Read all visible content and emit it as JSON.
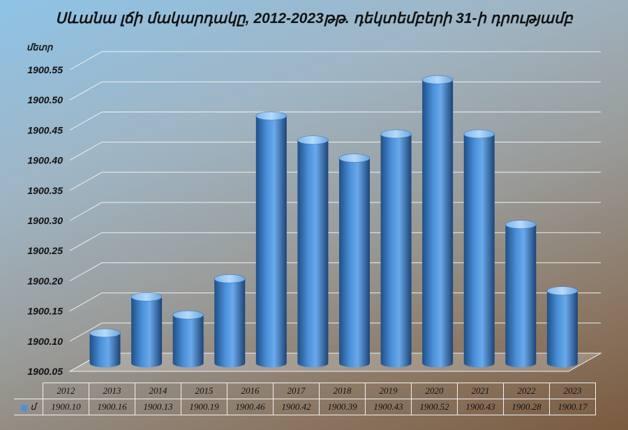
{
  "title": "Սևանա լճի մակարդակը, 2012-2023թթ. դեկտեմբերի 31-ի դրությամբ",
  "unit_label": "մետր",
  "colors": {
    "bar": "#4a90d9",
    "bar_dark": "#1f4f86",
    "bar_light": "#9fcaf2",
    "grid": "#f0f0f0"
  },
  "chart_data": {
    "type": "bar",
    "title": "Սևանա լճի մակարդակը, 2012-2023թթ. դեկտեմբերի 31-ի դրությամբ",
    "ylabel": "մետր",
    "ylim": [
      1900.05,
      1900.55
    ],
    "yticks": [
      "1900.05",
      "1900.10",
      "1900.15",
      "1900.20",
      "1900.25",
      "1900.30",
      "1900.35",
      "1900.40",
      "1900.45",
      "1900.50",
      "1900.55"
    ],
    "categories": [
      "2012",
      "2013",
      "2014",
      "2015",
      "2016",
      "2017",
      "2018",
      "2019",
      "2020",
      "2021",
      "2022",
      "2023"
    ],
    "series": [
      {
        "name": "մ",
        "values": [
          1900.1,
          1900.16,
          1900.13,
          1900.19,
          1900.46,
          1900.42,
          1900.39,
          1900.43,
          1900.52,
          1900.43,
          1900.28,
          1900.17
        ],
        "labels": [
          "1900.10",
          "1900.16",
          "1900.13",
          "1900.19",
          "1900.46",
          "1900.42",
          "1900.39",
          "1900.43",
          "1900.52",
          "1900.43",
          "1900.28",
          "1900.17"
        ]
      }
    ],
    "grid": true,
    "legend": "table-left",
    "data_table": true
  }
}
